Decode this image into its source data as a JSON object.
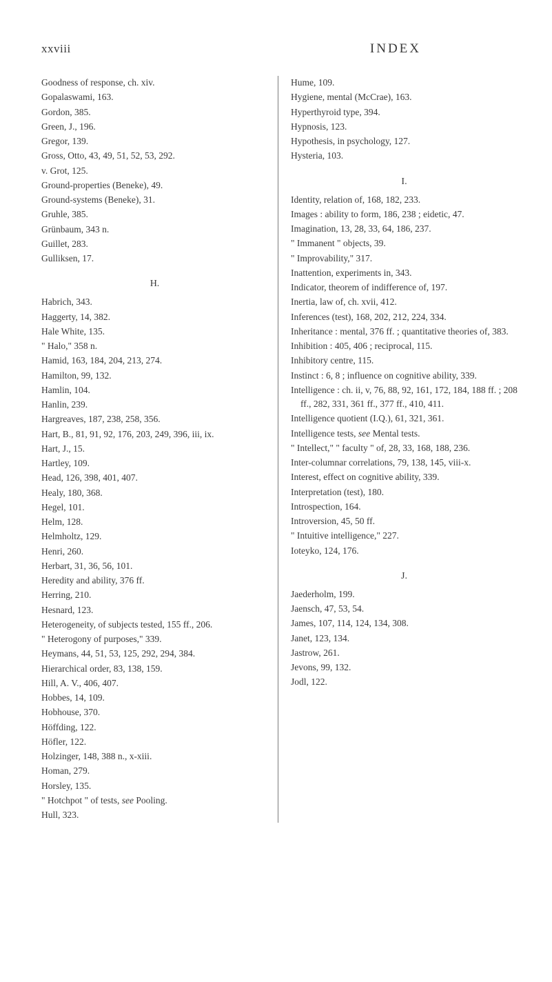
{
  "header": {
    "page_number": "xxviii",
    "title": "INDEX"
  },
  "left_column": {
    "entries_before_H": [
      "Goodness of response, ch. xiv.",
      "Gopalaswami, 163.",
      "Gordon, 385.",
      "Green, J., 196.",
      "Gregor, 139.",
      "Gross, Otto, 43, 49, 51, 52, 53, 292.",
      "v. Grot, 125.",
      "Ground-properties (Beneke), 49.",
      "Ground-systems (Beneke), 31.",
      "Gruhle, 385.",
      "Grünbaum, 343 n.",
      "Guillet, 283.",
      "Gulliksen, 17."
    ],
    "section_H_label": "H.",
    "entries_H": [
      "Habrich, 343.",
      "Haggerty, 14, 382.",
      "Hale White, 135.",
      "\" Halo,\" 358 n.",
      "Hamid, 163, 184, 204, 213, 274.",
      "Hamilton, 99, 132.",
      "Hamlin, 104.",
      "Hanlin, 239.",
      "Hargreaves, 187, 238, 258, 356.",
      "Hart, B., 81, 91, 92, 176, 203, 249, 396, iii, ix.",
      "Hart, J., 15.",
      "Hartley, 109.",
      "Head, 126, 398, 401, 407.",
      "Healy, 180, 368.",
      "Hegel, 101.",
      "Helm, 128.",
      "Helmholtz, 129.",
      "Henri, 260.",
      "Herbart, 31, 36, 56, 101.",
      "Heredity and ability, 376 ff.",
      "Herring, 210.",
      "Hesnard, 123.",
      "Heterogeneity, of subjects tested, 155 ff., 206.",
      "\" Heterogony of purposes,\" 339.",
      "Heymans, 44, 51, 53, 125, 292, 294, 384.",
      "Hierarchical order, 83, 138, 159.",
      "Hill, A. V., 406, 407.",
      "Hobbes, 14, 109.",
      "Hobhouse, 370.",
      "Höffding, 122.",
      "Höfler, 122.",
      "Holzinger, 148, 388 n., x-xiii.",
      "Homan, 279.",
      "Horsley, 135.",
      "\" Hotchpot \" of tests, see Pooling.",
      "Hull, 323."
    ]
  },
  "right_column": {
    "entries_H_cont": [
      "Hume, 109.",
      "Hygiene, mental (McCrae), 163.",
      "Hyperthyroid type, 394.",
      "Hypnosis, 123.",
      "Hypothesis, in psychology, 127.",
      "Hysteria, 103."
    ],
    "section_I_label": "I.",
    "entries_I": [
      "Identity, relation of, 168, 182, 233.",
      "Images : ability to form, 186, 238 ; eidetic, 47.",
      "Imagination, 13, 28, 33, 64, 186, 237.",
      "\" Immanent \" objects, 39.",
      "\" Improvability,\" 317.",
      "Inattention, experiments in, 343.",
      "Indicator, theorem of indifference of, 197.",
      "Inertia, law of, ch. xvii, 412.",
      "Inferences (test), 168, 202, 212, 224, 334.",
      "Inheritance : mental, 376 ff. ; quantitative theories of, 383.",
      "Inhibition : 405, 406 ; reciprocal, 115.",
      "Inhibitory centre, 115.",
      "Instinct : 6, 8 ; influence on cognitive ability, 339.",
      "Intelligence : ch. ii, v, 76, 88, 92, 161, 172, 184, 188 ff. ; 208 ff., 282, 331, 361 ff., 377 ff., 410, 411.",
      "Intelligence quotient (I.Q.), 61, 321, 361.",
      "Intelligence tests, see Mental tests.",
      "\" Intellect,\" \" faculty \" of, 28, 33, 168, 188, 236.",
      "Inter-columnar correlations, 79, 138, 145, viii-x.",
      "Interest, effect on cognitive ability, 339.",
      "Interpretation (test), 180.",
      "Introspection, 164.",
      "Introversion, 45, 50 ff.",
      "\" Intuitive intelligence,\" 227.",
      "Ioteyko, 124, 176."
    ],
    "section_J_label": "J.",
    "entries_J": [
      "Jaederholm, 199.",
      "Jaensch, 47, 53, 54.",
      "James, 107, 114, 124, 134, 308.",
      "Janet, 123, 134.",
      "Jastrow, 261.",
      "Jevons, 99, 132.",
      "Jodl, 122."
    ]
  }
}
